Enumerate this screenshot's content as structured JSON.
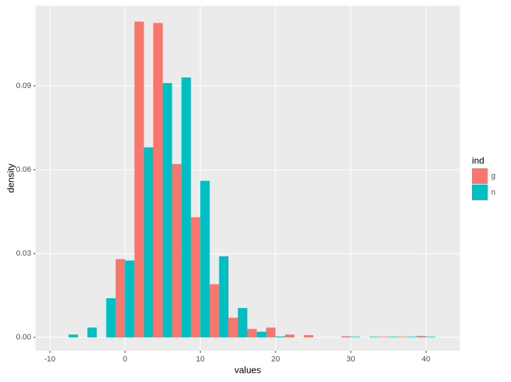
{
  "chart_data": {
    "type": "histogram",
    "x_label": "values",
    "y_label": "density",
    "legend_title": "ind",
    "bins": [
      -8.75,
      -6.25,
      -3.75,
      -1.25,
      1.25,
      3.75,
      6.25,
      8.75,
      11.25,
      13.75,
      16.25,
      18.75,
      21.25,
      23.75,
      26.25,
      28.75,
      31.25,
      33.75,
      36.25,
      38.75,
      41.25
    ],
    "series": [
      {
        "name": "g",
        "color": "#F8766D",
        "values": [
          0,
          0,
          0,
          0.028,
          0.113,
          0.1125,
          0.062,
          0.043,
          0.019,
          0.007,
          0.003,
          0.0035,
          0.001,
          0.0008,
          0,
          0.0004,
          0,
          0.0002,
          0.0002,
          0.0005
        ]
      },
      {
        "name": "n",
        "color": "#00BFC4",
        "values": [
          0.001,
          0.0035,
          0.014,
          0.0275,
          0.068,
          0.091,
          0.093,
          0.056,
          0.029,
          0.0105,
          0.002,
          0.0003,
          0,
          0,
          0,
          0.0002,
          0.0002,
          0.0002,
          0.0002,
          0.0002
        ]
      }
    ],
    "xlim": [
      -11.9,
      44.5
    ],
    "xticks": [
      -10,
      0,
      10,
      20,
      30,
      40
    ],
    "ylim": [
      -0.0048,
      0.1187
    ],
    "yticks": [
      {
        "value": 0,
        "label": "0.00"
      },
      {
        "value": 0.03,
        "label": "0.03"
      },
      {
        "value": 0.06,
        "label": "0.06"
      },
      {
        "value": 0.09,
        "label": "0.09"
      }
    ],
    "grid": true,
    "legend": "right"
  }
}
